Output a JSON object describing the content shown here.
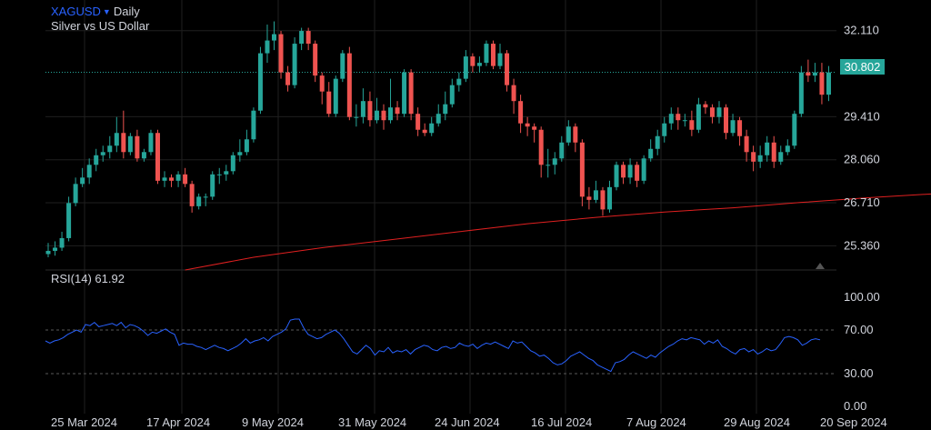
{
  "header": {
    "symbol": "XAGUSD",
    "interval": "Daily",
    "description": "Silver vs US Dollar"
  },
  "rsi_label": "RSI(14) 61.92",
  "colors": {
    "up": "#26a69a",
    "down": "#ef5350",
    "ma": "#e02020",
    "rsi": "#2962ff",
    "grid": "#1f1f1f"
  },
  "chart_data": [
    {
      "type": "candlestick",
      "title": "XAGUSD · Daily",
      "subtitle": "Silver vs US Dollar",
      "ylim": [
        24.6,
        32.9
      ],
      "y_ticks": [
        32.11,
        30.802,
        29.41,
        28.06,
        26.71,
        25.36
      ],
      "y_tick_labels": [
        "32.110",
        "29.410",
        "28.060",
        "26.710",
        "25.360"
      ],
      "last_price": 30.802,
      "last_price_label": "30.802",
      "x_labels": [
        "25 Mar 2024",
        "17 Apr 2024",
        "9 May 2024",
        "31 May 2024",
        "24 Jun 2024",
        "16 Jul 2024",
        "7 Aug 2024",
        "29 Aug 2024",
        "20 Sep 2024"
      ],
      "ma_series": [
        [
          20,
          24.6
        ],
        [
          30,
          25.0
        ],
        [
          40,
          25.3
        ],
        [
          50,
          25.55
        ],
        [
          60,
          25.8
        ],
        [
          70,
          26.05
        ],
        [
          80,
          26.25
        ],
        [
          90,
          26.42
        ],
        [
          100,
          26.55
        ],
        [
          110,
          26.72
        ],
        [
          120,
          26.87
        ],
        [
          130,
          27.0
        ],
        [
          139,
          27.12
        ]
      ],
      "candles": [
        [
          0,
          25.1,
          25.2,
          25.0,
          25.45
        ],
        [
          1,
          25.2,
          25.3,
          25.05,
          25.5
        ],
        [
          2,
          25.3,
          25.6,
          25.2,
          25.8
        ],
        [
          3,
          25.6,
          26.7,
          25.5,
          26.9
        ],
        [
          4,
          26.7,
          27.3,
          26.6,
          27.5
        ],
        [
          5,
          27.3,
          27.5,
          27.2,
          27.8
        ],
        [
          6,
          27.5,
          27.9,
          27.3,
          28.1
        ],
        [
          7,
          27.9,
          28.2,
          27.7,
          28.4
        ],
        [
          8,
          28.2,
          28.3,
          28.0,
          28.5
        ],
        [
          9,
          28.3,
          28.5,
          28.1,
          28.8
        ],
        [
          10,
          28.5,
          28.9,
          28.3,
          29.4
        ],
        [
          11,
          28.9,
          28.3,
          28.1,
          29.6
        ],
        [
          12,
          28.3,
          28.8,
          28.2,
          28.9
        ],
        [
          13,
          28.8,
          28.1,
          28.0,
          29.0
        ],
        [
          14,
          28.1,
          28.3,
          28.0,
          28.4
        ],
        [
          15,
          28.3,
          28.9,
          28.2,
          29.0
        ],
        [
          16,
          28.9,
          27.4,
          27.3,
          29.0
        ],
        [
          17,
          27.4,
          27.5,
          27.2,
          27.7
        ],
        [
          18,
          27.5,
          27.4,
          27.2,
          27.6
        ],
        [
          19,
          27.4,
          27.6,
          27.2,
          27.7
        ],
        [
          20,
          27.6,
          27.3,
          27.2,
          27.8
        ],
        [
          21,
          27.3,
          26.6,
          26.4,
          27.4
        ],
        [
          22,
          26.6,
          26.9,
          26.5,
          27.0
        ],
        [
          23,
          26.9,
          26.9,
          26.6,
          27.0
        ],
        [
          24,
          26.9,
          27.6,
          26.8,
          27.7
        ],
        [
          25,
          27.6,
          27.6,
          27.3,
          27.8
        ],
        [
          26,
          27.6,
          27.7,
          27.4,
          27.9
        ],
        [
          27,
          27.7,
          28.2,
          27.6,
          28.3
        ],
        [
          28,
          28.2,
          28.3,
          28.0,
          28.7
        ],
        [
          29,
          28.3,
          28.7,
          28.2,
          29.0
        ],
        [
          30,
          28.7,
          29.6,
          28.6,
          29.7
        ],
        [
          31,
          29.6,
          31.4,
          29.5,
          31.6
        ],
        [
          32,
          31.4,
          31.8,
          31.1,
          32.3
        ],
        [
          33,
          31.8,
          32.0,
          31.5,
          32.4
        ],
        [
          34,
          32.0,
          30.8,
          30.6,
          32.1
        ],
        [
          35,
          30.8,
          30.4,
          30.2,
          31.0
        ],
        [
          36,
          30.4,
          31.7,
          30.3,
          31.9
        ],
        [
          37,
          31.7,
          32.1,
          31.5,
          32.2
        ],
        [
          38,
          32.1,
          31.7,
          31.5,
          32.2
        ],
        [
          39,
          31.7,
          30.7,
          30.5,
          31.8
        ],
        [
          40,
          30.7,
          30.2,
          29.8,
          30.8
        ],
        [
          41,
          30.2,
          29.5,
          29.4,
          30.5
        ],
        [
          42,
          29.5,
          30.6,
          29.4,
          30.7
        ],
        [
          43,
          30.6,
          31.4,
          30.5,
          31.5
        ],
        [
          44,
          31.4,
          29.4,
          29.3,
          31.6
        ],
        [
          45,
          29.4,
          29.4,
          29.1,
          29.8
        ],
        [
          46,
          29.4,
          29.9,
          29.2,
          30.3
        ],
        [
          47,
          29.9,
          29.3,
          29.1,
          30.2
        ],
        [
          48,
          29.3,
          29.6,
          29.2,
          30.0
        ],
        [
          49,
          29.6,
          29.3,
          29.0,
          29.8
        ],
        [
          50,
          29.3,
          29.7,
          29.2,
          30.6
        ],
        [
          51,
          29.7,
          29.5,
          29.3,
          29.9
        ],
        [
          52,
          29.5,
          30.8,
          29.4,
          30.9
        ],
        [
          53,
          30.8,
          29.5,
          29.3,
          30.9
        ],
        [
          54,
          29.5,
          29.0,
          28.8,
          29.7
        ],
        [
          55,
          29.0,
          28.9,
          28.8,
          29.2
        ],
        [
          56,
          28.9,
          29.2,
          28.8,
          29.4
        ],
        [
          57,
          29.2,
          29.5,
          29.1,
          29.8
        ],
        [
          58,
          29.5,
          29.8,
          29.3,
          30.2
        ],
        [
          59,
          29.8,
          30.4,
          29.7,
          30.6
        ],
        [
          60,
          30.4,
          30.6,
          30.2,
          30.8
        ],
        [
          61,
          30.6,
          31.3,
          30.5,
          31.5
        ],
        [
          62,
          31.3,
          31.0,
          30.8,
          31.4
        ],
        [
          63,
          31.0,
          31.1,
          30.8,
          31.3
        ],
        [
          64,
          31.1,
          31.7,
          31.0,
          31.8
        ],
        [
          65,
          31.7,
          31.0,
          30.9,
          31.8
        ],
        [
          66,
          31.0,
          31.4,
          30.9,
          31.7
        ],
        [
          67,
          31.4,
          30.4,
          30.2,
          31.5
        ],
        [
          68,
          30.4,
          29.9,
          29.5,
          30.6
        ],
        [
          69,
          29.9,
          29.2,
          28.9,
          30.1
        ],
        [
          70,
          29.2,
          29.1,
          28.8,
          29.4
        ],
        [
          71,
          29.1,
          29.0,
          28.6,
          29.2
        ],
        [
          72,
          29.0,
          27.9,
          27.5,
          29.1
        ],
        [
          73,
          27.9,
          27.9,
          27.5,
          28.4
        ],
        [
          74,
          27.9,
          28.1,
          27.6,
          28.3
        ],
        [
          75,
          28.1,
          28.6,
          28.0,
          28.8
        ],
        [
          76,
          28.6,
          29.1,
          28.5,
          29.3
        ],
        [
          77,
          29.1,
          28.6,
          28.3,
          29.2
        ],
        [
          78,
          28.6,
          26.9,
          26.6,
          28.7
        ],
        [
          79,
          26.9,
          26.8,
          26.5,
          27.2
        ],
        [
          80,
          26.8,
          27.1,
          26.7,
          27.4
        ],
        [
          81,
          27.1,
          26.5,
          26.3,
          27.2
        ],
        [
          82,
          26.5,
          27.2,
          26.4,
          27.4
        ],
        [
          83,
          27.2,
          27.9,
          27.1,
          28.0
        ],
        [
          84,
          27.9,
          27.5,
          27.3,
          28.0
        ],
        [
          85,
          27.5,
          27.9,
          27.3,
          28.1
        ],
        [
          86,
          27.9,
          27.4,
          27.2,
          28.0
        ],
        [
          87,
          27.4,
          28.1,
          27.3,
          28.2
        ],
        [
          88,
          28.1,
          28.4,
          28.0,
          28.7
        ],
        [
          89,
          28.4,
          28.8,
          28.2,
          29.0
        ],
        [
          90,
          28.8,
          29.2,
          28.6,
          29.4
        ],
        [
          91,
          29.2,
          29.5,
          29.0,
          29.7
        ],
        [
          92,
          29.5,
          29.3,
          29.0,
          29.7
        ],
        [
          93,
          29.3,
          29.3,
          29.1,
          29.5
        ],
        [
          94,
          29.3,
          29.0,
          28.8,
          29.6
        ],
        [
          95,
          29.0,
          29.8,
          28.9,
          30.0
        ],
        [
          96,
          29.8,
          29.7,
          29.5,
          29.9
        ],
        [
          97,
          29.7,
          29.4,
          29.2,
          29.8
        ],
        [
          98,
          29.4,
          29.7,
          29.2,
          29.9
        ],
        [
          99,
          29.7,
          28.9,
          28.7,
          29.8
        ],
        [
          100,
          28.9,
          29.3,
          28.8,
          29.5
        ],
        [
          101,
          29.3,
          28.8,
          28.5,
          29.4
        ],
        [
          102,
          28.8,
          28.3,
          28.0,
          29.0
        ],
        [
          103,
          28.3,
          28.0,
          27.7,
          28.5
        ],
        [
          104,
          28.0,
          28.2,
          27.8,
          28.5
        ],
        [
          105,
          28.2,
          28.6,
          28.0,
          28.8
        ],
        [
          106,
          28.6,
          28.0,
          27.8,
          28.8
        ],
        [
          107,
          28.0,
          28.3,
          27.9,
          28.5
        ],
        [
          108,
          28.3,
          28.5,
          28.2,
          28.7
        ],
        [
          109,
          28.5,
          29.5,
          28.4,
          29.6
        ],
        [
          110,
          29.5,
          30.8,
          29.4,
          31.0
        ],
        [
          111,
          30.8,
          30.7,
          30.5,
          31.2
        ],
        [
          112,
          30.7,
          30.8,
          30.5,
          31.1
        ],
        [
          113,
          30.8,
          30.1,
          29.8,
          31.1
        ],
        [
          114,
          30.1,
          30.8,
          29.9,
          31.0
        ]
      ]
    },
    {
      "type": "line",
      "title": "RSI(14) 61.92",
      "ylim": [
        0,
        100
      ],
      "y_tick_labels": [
        "100.00",
        "70.00",
        "30.00",
        "0.00"
      ],
      "levels": [
        70,
        30
      ],
      "values": [
        60,
        58,
        60,
        61,
        63,
        66,
        68,
        70,
        68,
        75,
        74,
        77,
        73,
        74,
        75,
        76,
        74,
        77,
        72,
        75,
        74,
        72,
        69,
        65,
        68,
        67,
        69,
        71,
        68,
        66,
        56,
        58,
        57,
        57,
        55,
        54,
        52,
        54,
        56,
        54,
        53,
        51,
        53,
        55,
        58,
        62,
        58,
        60,
        61,
        63,
        60,
        64,
        66,
        68,
        71,
        79,
        80,
        80,
        72,
        66,
        64,
        62,
        63,
        66,
        68,
        70,
        67,
        62,
        56,
        50,
        48,
        52,
        56,
        53,
        47,
        51,
        50,
        54,
        49,
        51,
        50,
        52,
        48,
        52,
        54,
        56,
        55,
        52,
        51,
        54,
        55,
        53,
        54,
        58,
        56,
        55,
        57,
        53,
        56,
        58,
        57,
        59,
        57,
        55,
        53,
        60,
        58,
        59,
        55,
        51,
        49,
        46,
        47,
        44,
        40,
        38,
        39,
        42,
        46,
        48,
        50,
        47,
        44,
        42,
        38,
        36,
        34,
        32,
        40,
        41,
        43,
        47,
        50,
        48,
        46,
        44,
        47,
        45,
        49,
        52,
        55,
        57,
        60,
        62,
        61,
        63,
        62,
        61,
        57,
        60,
        58,
        61,
        55,
        53,
        50,
        48,
        52,
        53,
        50,
        52,
        48,
        50,
        53,
        51,
        52,
        57,
        63,
        64,
        63,
        61,
        56,
        58,
        61,
        62,
        61
      ]
    }
  ]
}
